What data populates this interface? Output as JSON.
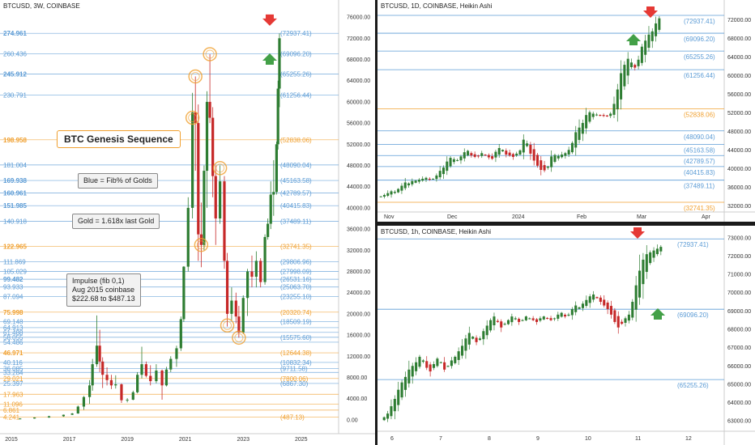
{
  "panels": {
    "left": {
      "title": "BTCUSD, 3W, COINBASE",
      "annotations": {
        "genesis": "BTC Genesis Sequence",
        "blue_note": "Blue = Fib% of Golds",
        "gold_note": "Gold = 1.618x last Gold",
        "impulse_line1": "Impulse (fib 0,1)",
        "impulse_line2": "Aug 2015 coinbase",
        "impulse_line3": "$222.68 to $487.13"
      }
    },
    "top_right": {
      "title": "BTCUSD, 1D, COINBASE, Heikin Ashi"
    },
    "bottom_right": {
      "title": "BTCUSD, 1h, COINBASE, Heikin Ashi"
    }
  },
  "colors": {
    "blue": "#5b9bd5",
    "gold": "#f0a030",
    "up": "#2e7d32",
    "down": "#c62828",
    "arrow_red": "#e53935",
    "arrow_green": "#43a047"
  },
  "chart_data": [
    {
      "type": "candlestick",
      "title": "BTCUSD, 3W, COINBASE",
      "xlabel": "",
      "ylabel": "",
      "x_ticks": [
        "2015",
        "2017",
        "2019",
        "2021",
        "2023",
        "2025"
      ],
      "x_tick_years": [
        2015,
        2017,
        2019,
        2021,
        2023,
        2025
      ],
      "xlim": [
        2015.0,
        2025.9
      ],
      "y_ticks": [
        0,
        4000,
        8000,
        12000,
        16000,
        20000,
        24000,
        28000,
        32000,
        36000,
        40000,
        44000,
        48000,
        52000,
        56000,
        60000,
        64000,
        68000,
        72000,
        76000
      ],
      "y_tick_labels": [
        "0.00",
        "4000.00",
        "8000.00",
        "12000.00",
        "16000.00",
        "20000.00",
        "24000.00",
        "28000.00",
        "32000.00",
        "36000.00",
        "40000.00",
        "44000.00",
        "48000.00",
        "52000.00",
        "56000.00",
        "60000.00",
        "64000.00",
        "68000.00",
        "72000.00",
        "76000.00"
      ],
      "ylim": [
        -2000,
        78000
      ],
      "levels": [
        {
          "fib": "274.961",
          "price": "(72937.41)",
          "value": 72937,
          "color": "blue",
          "bold": true
        },
        {
          "fib": "260.436",
          "price": "(69096.20)",
          "value": 69096,
          "color": "blue",
          "bold": false
        },
        {
          "fib": "245.912",
          "price": "(65255.26)",
          "value": 65255,
          "color": "blue",
          "bold": true
        },
        {
          "fib": "230.791",
          "price": "(61256.44)",
          "value": 61256,
          "color": "blue",
          "bold": false
        },
        {
          "fib": "198.958",
          "price": "(52838.06)",
          "value": 52838,
          "color": "gold",
          "bold": true
        },
        {
          "fib": "181.004",
          "price": "(48090.04)",
          "value": 48090,
          "color": "blue",
          "bold": false
        },
        {
          "fib": "169.938",
          "price": "(45163.58)",
          "value": 45163,
          "color": "blue",
          "bold": true
        },
        {
          "fib": "160.961",
          "price": "(42789.57)",
          "value": 42789,
          "color": "blue",
          "bold": true
        },
        {
          "fib": "151.985",
          "price": "(40415.83)",
          "value": 40415,
          "color": "blue",
          "bold": true
        },
        {
          "fib": "140.918",
          "price": "(37489.11)",
          "value": 37489,
          "color": "blue",
          "bold": false
        },
        {
          "fib": "122.965",
          "price": "(32741.35)",
          "value": 32741,
          "color": "gold",
          "bold": true
        },
        {
          "fib": "111.869",
          "price": "(29806.96)",
          "value": 29806,
          "color": "blue",
          "bold": false
        },
        {
          "fib": "105.029",
          "price": "(27998.09)",
          "value": 27998,
          "color": "blue",
          "bold": false
        },
        {
          "fib": "99.482",
          "price": "(26531.16)",
          "value": 26531,
          "color": "blue",
          "bold": true
        },
        {
          "fib": "93.933",
          "price": "(25063.70)",
          "value": 25063,
          "color": "blue",
          "bold": false
        },
        {
          "fib": "87.094",
          "price": "(23255.10)",
          "value": 23255,
          "color": "blue",
          "bold": false
        },
        {
          "fib": "75.998",
          "price": "(20320.74)",
          "value": 20320,
          "color": "gold",
          "bold": true
        },
        {
          "fib": "69.148",
          "price": "(18509.19)",
          "value": 18509,
          "color": "blue",
          "bold": false
        },
        {
          "fib": "64.913",
          "price": "",
          "value": 17400,
          "color": "blue",
          "bold": false
        },
        {
          "fib": "61.488",
          "price": "",
          "value": 16500,
          "color": "blue",
          "bold": false
        },
        {
          "fib": "58.055",
          "price": "(15575.60)",
          "value": 15575,
          "color": "blue",
          "bold": false
        },
        {
          "fib": "54.486",
          "price": "",
          "value": 14650,
          "color": "blue",
          "bold": false
        },
        {
          "fib": "46.971",
          "price": "(12644.38)",
          "value": 12644,
          "color": "gold",
          "bold": true
        },
        {
          "fib": "40.116",
          "price": "(10832.34)",
          "value": 10832,
          "color": "blue",
          "bold": false
        },
        {
          "fib": "36.085",
          "price": "(9711.58)",
          "value": 9711,
          "color": "blue",
          "bold": false
        },
        {
          "fib": "33.284",
          "price": "",
          "value": 8950,
          "color": "blue",
          "bold": false
        },
        {
          "fib": "29.021",
          "price": "(7800.06)",
          "value": 7800,
          "color": "gold",
          "bold": false
        },
        {
          "fib": "25.397",
          "price": "(6867.30)",
          "value": 6867,
          "color": "blue",
          "bold": false
        },
        {
          "fib": "17.963",
          "price": "",
          "value": 4830,
          "color": "gold",
          "bold": false
        },
        {
          "fib": "11.096",
          "price": "",
          "value": 2990,
          "color": "gold",
          "bold": false
        },
        {
          "fib": "6.861",
          "price": "",
          "value": 1840,
          "color": "gold",
          "bold": false
        },
        {
          "fib": "4.241",
          "price": "(487.13)",
          "value": 487,
          "color": "gold",
          "bold": false
        }
      ],
      "candles": [
        {
          "t": 2015.3,
          "o": 230,
          "h": 300,
          "l": 200,
          "c": 250
        },
        {
          "t": 2015.8,
          "o": 250,
          "h": 480,
          "l": 220,
          "c": 430
        },
        {
          "t": 2016.3,
          "o": 430,
          "h": 770,
          "l": 400,
          "c": 670
        },
        {
          "t": 2016.8,
          "o": 670,
          "h": 1000,
          "l": 580,
          "c": 960
        },
        {
          "t": 2017.1,
          "o": 960,
          "h": 1300,
          "l": 900,
          "c": 1200
        },
        {
          "t": 2017.3,
          "o": 1200,
          "h": 2700,
          "l": 1150,
          "c": 2500
        },
        {
          "t": 2017.5,
          "o": 2500,
          "h": 4500,
          "l": 1900,
          "c": 4300
        },
        {
          "t": 2017.7,
          "o": 4300,
          "h": 7500,
          "l": 3000,
          "c": 6500
        },
        {
          "t": 2017.8,
          "o": 6500,
          "h": 11500,
          "l": 5500,
          "c": 10500
        },
        {
          "t": 2017.95,
          "o": 10500,
          "h": 19700,
          "l": 10000,
          "c": 14000
        },
        {
          "t": 2018.05,
          "o": 14000,
          "h": 17000,
          "l": 9000,
          "c": 11000
        },
        {
          "t": 2018.15,
          "o": 11000,
          "h": 11800,
          "l": 6000,
          "c": 8500
        },
        {
          "t": 2018.3,
          "o": 8500,
          "h": 9900,
          "l": 6500,
          "c": 7500
        },
        {
          "t": 2018.45,
          "o": 7500,
          "h": 8500,
          "l": 5800,
          "c": 6500
        },
        {
          "t": 2018.6,
          "o": 6500,
          "h": 8400,
          "l": 5900,
          "c": 6700
        },
        {
          "t": 2018.8,
          "o": 6700,
          "h": 6900,
          "l": 3200,
          "c": 3700
        },
        {
          "t": 2019.0,
          "o": 3700,
          "h": 4100,
          "l": 3300,
          "c": 3800
        },
        {
          "t": 2019.2,
          "o": 3800,
          "h": 5500,
          "l": 3700,
          "c": 5200
        },
        {
          "t": 2019.35,
          "o": 5200,
          "h": 9000,
          "l": 5000,
          "c": 8500
        },
        {
          "t": 2019.5,
          "o": 8500,
          "h": 13800,
          "l": 7800,
          "c": 10500
        },
        {
          "t": 2019.65,
          "o": 10500,
          "h": 11000,
          "l": 8000,
          "c": 8300
        },
        {
          "t": 2019.8,
          "o": 8300,
          "h": 10300,
          "l": 6500,
          "c": 7300
        },
        {
          "t": 2020.0,
          "o": 7300,
          "h": 10500,
          "l": 6900,
          "c": 9300
        },
        {
          "t": 2020.2,
          "o": 9300,
          "h": 9500,
          "l": 3800,
          "c": 6500
        },
        {
          "t": 2020.35,
          "o": 6500,
          "h": 10000,
          "l": 6300,
          "c": 9500
        },
        {
          "t": 2020.5,
          "o": 9500,
          "h": 12000,
          "l": 9000,
          "c": 11500
        },
        {
          "t": 2020.7,
          "o": 11500,
          "h": 14000,
          "l": 10000,
          "c": 13500
        },
        {
          "t": 2020.85,
          "o": 13500,
          "h": 19500,
          "l": 13000,
          "c": 19000
        },
        {
          "t": 2020.95,
          "o": 19000,
          "h": 29000,
          "l": 18500,
          "c": 28900
        },
        {
          "t": 2021.1,
          "o": 28900,
          "h": 42000,
          "l": 28000,
          "c": 40000
        },
        {
          "t": 2021.25,
          "o": 40000,
          "h": 61700,
          "l": 38000,
          "c": 58000
        },
        {
          "t": 2021.35,
          "o": 58000,
          "h": 64800,
          "l": 47000,
          "c": 56000
        },
        {
          "t": 2021.45,
          "o": 56000,
          "h": 59500,
          "l": 30000,
          "c": 35000
        },
        {
          "t": 2021.55,
          "o": 35000,
          "h": 41000,
          "l": 28800,
          "c": 33000
        },
        {
          "t": 2021.65,
          "o": 33000,
          "h": 48000,
          "l": 32000,
          "c": 47000
        },
        {
          "t": 2021.75,
          "o": 47000,
          "h": 62000,
          "l": 40000,
          "c": 60000
        },
        {
          "t": 2021.85,
          "o": 60000,
          "h": 69000,
          "l": 56000,
          "c": 57000
        },
        {
          "t": 2021.95,
          "o": 57000,
          "h": 59000,
          "l": 42000,
          "c": 46000
        },
        {
          "t": 2022.05,
          "o": 46000,
          "h": 48000,
          "l": 33000,
          "c": 38000
        },
        {
          "t": 2022.2,
          "o": 38000,
          "h": 48000,
          "l": 37000,
          "c": 45000
        },
        {
          "t": 2022.35,
          "o": 45000,
          "h": 46000,
          "l": 28500,
          "c": 30000
        },
        {
          "t": 2022.45,
          "o": 30000,
          "h": 31500,
          "l": 17600,
          "c": 20000
        },
        {
          "t": 2022.6,
          "o": 20000,
          "h": 25000,
          "l": 18800,
          "c": 22500
        },
        {
          "t": 2022.75,
          "o": 22500,
          "h": 24000,
          "l": 18200,
          "c": 19500
        },
        {
          "t": 2022.85,
          "o": 19500,
          "h": 21500,
          "l": 15500,
          "c": 16500
        },
        {
          "t": 2023.0,
          "o": 16500,
          "h": 23500,
          "l": 16200,
          "c": 23000
        },
        {
          "t": 2023.15,
          "o": 23000,
          "h": 28500,
          "l": 19600,
          "c": 28000
        },
        {
          "t": 2023.3,
          "o": 28000,
          "h": 31000,
          "l": 25000,
          "c": 27000
        },
        {
          "t": 2023.45,
          "o": 27000,
          "h": 31800,
          "l": 25000,
          "c": 30000
        },
        {
          "t": 2023.6,
          "o": 30000,
          "h": 30500,
          "l": 25000,
          "c": 26000
        },
        {
          "t": 2023.75,
          "o": 26000,
          "h": 35000,
          "l": 25500,
          "c": 34500
        },
        {
          "t": 2023.85,
          "o": 34500,
          "h": 38000,
          "l": 34000,
          "c": 37000
        },
        {
          "t": 2023.95,
          "o": 37000,
          "h": 45000,
          "l": 36000,
          "c": 42500
        },
        {
          "t": 2024.05,
          "o": 42500,
          "h": 49000,
          "l": 38500,
          "c": 43000
        },
        {
          "t": 2024.15,
          "o": 43000,
          "h": 52500,
          "l": 42500,
          "c": 52000
        },
        {
          "t": 2024.2,
          "o": 52000,
          "h": 64000,
          "l": 51000,
          "c": 62500
        },
        {
          "t": 2024.25,
          "o": 62500,
          "h": 72900,
          "l": 59000,
          "c": 72000
        }
      ]
    },
    {
      "type": "candlestick",
      "title": "BTCUSD, 1D, COINBASE, Heikin Ashi",
      "xlabel": "",
      "ylabel": "",
      "x_ticks": [
        "Nov",
        "Dec",
        "2024",
        "Feb",
        "Mar",
        "Apr"
      ],
      "y_ticks": [
        32000,
        36000,
        40000,
        44000,
        48000,
        52000,
        56000,
        60000,
        64000,
        68000,
        72000
      ],
      "y_tick_labels": [
        "32000.00",
        "36000.00",
        "40000.00",
        "44000.00",
        "48000.00",
        "52000.00",
        "56000.00",
        "60000.00",
        "64000.00",
        "68000.00",
        "72000.00"
      ],
      "ylim": [
        31000,
        74500
      ],
      "levels": [
        {
          "price": "(72937.41)",
          "value": 72937,
          "color": "blue"
        },
        {
          "price": "(69096.20)",
          "value": 69096,
          "color": "blue"
        },
        {
          "price": "(65255.26)",
          "value": 65255,
          "color": "blue"
        },
        {
          "price": "(61256.44)",
          "value": 61256,
          "color": "blue"
        },
        {
          "price": "(52838.06)",
          "value": 52838,
          "color": "gold"
        },
        {
          "price": "(48090.04)",
          "value": 48090,
          "color": "blue"
        },
        {
          "price": "(45163.58)",
          "value": 45163,
          "color": "blue"
        },
        {
          "price": "(42789.57)",
          "value": 42789,
          "color": "blue"
        },
        {
          "price": "(40415.83)",
          "value": 40415,
          "color": "blue"
        },
        {
          "price": "(37489.11)",
          "value": 37489,
          "color": "blue"
        },
        {
          "price": "(32741.35)",
          "value": 32741,
          "color": "gold"
        }
      ],
      "close_path": [
        34000,
        34300,
        34700,
        35100,
        35000,
        35600,
        36300,
        37000,
        36800,
        37300,
        37400,
        37600,
        37800,
        38000,
        37600,
        37800,
        38500,
        39500,
        40200,
        41500,
        42300,
        42000,
        41800,
        42600,
        43500,
        43800,
        42800,
        42500,
        42600,
        43300,
        42800,
        42400,
        42100,
        43600,
        44400,
        44000,
        43000,
        42800,
        42500,
        43200,
        43900,
        46200,
        45400,
        43200,
        41700,
        40600,
        39700,
        39600,
        40400,
        42600,
        42900,
        42700,
        43000,
        43300,
        44000,
        45500,
        47800,
        48800,
        49800,
        51500,
        52100,
        51800,
        51600,
        51500,
        51300,
        51200,
        51800,
        53900,
        57000,
        60500,
        62300,
        63600,
        62800,
        61700,
        63400,
        66200,
        67500,
        68800,
        69500,
        71200,
        72300
      ]
    },
    {
      "type": "candlestick",
      "title": "BTCUSD, 1h, COINBASE, Heikin Ashi",
      "xlabel": "",
      "ylabel": "",
      "x_ticks": [
        "6",
        "7",
        "8",
        "9",
        "10",
        "11",
        "12"
      ],
      "y_ticks": [
        63000,
        64000,
        65000,
        66000,
        67000,
        68000,
        69000,
        70000,
        71000,
        72000,
        73000
      ],
      "y_tick_labels": [
        "63000.00",
        "64000.00",
        "65000.00",
        "66000.00",
        "67000.00",
        "68000.00",
        "69000.00",
        "70000.00",
        "71000.00",
        "72000.00",
        "73000.00"
      ],
      "ylim": [
        62700,
        73300
      ],
      "levels": [
        {
          "price": "(72937.41)",
          "value": 72937,
          "color": "blue"
        },
        {
          "price": "(69096.20)",
          "value": 69096,
          "color": "blue"
        },
        {
          "price": "(65255.26)",
          "value": 65255,
          "color": "blue"
        }
      ],
      "close_path": [
        63200,
        63400,
        63800,
        64200,
        64700,
        65100,
        65400,
        65800,
        66000,
        66200,
        66500,
        66300,
        65900,
        65700,
        66100,
        66400,
        66200,
        65800,
        66000,
        66300,
        66500,
        66800,
        67100,
        67500,
        67800,
        67600,
        67300,
        67500,
        67900,
        68200,
        68500,
        68700,
        68400,
        68100,
        68300,
        68500,
        68700,
        68600,
        68400,
        68500,
        68700,
        68600,
        68500,
        68400,
        68600,
        68700,
        68600,
        68500,
        68600,
        68800,
        68900,
        68700,
        68800,
        69100,
        69300,
        69200,
        69400,
        69600,
        69800,
        69900,
        69700,
        69500,
        69300,
        69100,
        68800,
        68400,
        68100,
        68300,
        68600,
        68800,
        69500,
        70400,
        71200,
        71800,
        72100,
        72200,
        72300,
        72400,
        72500
      ]
    }
  ]
}
